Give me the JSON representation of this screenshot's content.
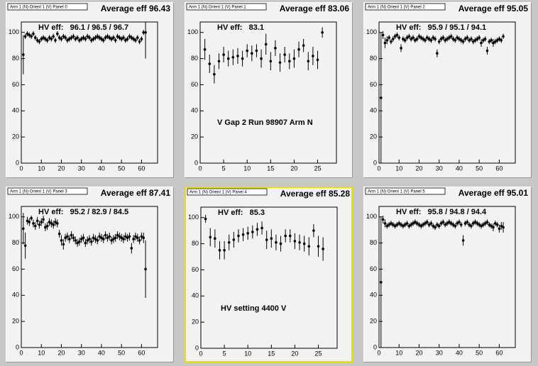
{
  "chart_data": [
    {
      "type": "scatter",
      "title": "Arm 1 (N) Orient 1 (V) Panel 0",
      "subtitle": "Average eff 96.43",
      "annotations": [
        "HV eff:   96.1 / 96.5 / 96.7"
      ],
      "xlim": [
        0,
        68
      ],
      "ylim": [
        0,
        108
      ],
      "xticks": [
        0,
        10,
        20,
        30,
        40,
        50,
        60
      ],
      "yticks": [
        0,
        20,
        40,
        60,
        80,
        100
      ],
      "series": [
        {
          "color": "#000000",
          "x": [
            1,
            2,
            3,
            4,
            5,
            6,
            7,
            8,
            9,
            10,
            11,
            12,
            13,
            14,
            15,
            16,
            17,
            18,
            19,
            20,
            21,
            22,
            23,
            24,
            25,
            26,
            27,
            28,
            29,
            30,
            31,
            32,
            33,
            34,
            35,
            36,
            37,
            38,
            39,
            40,
            41,
            42,
            43,
            44,
            45,
            46,
            47,
            48,
            49,
            50,
            51,
            52,
            53,
            54,
            55,
            56,
            57,
            58,
            59,
            60,
            61,
            62
          ],
          "values": [
            83,
            97,
            99,
            98,
            97,
            99,
            96,
            94,
            93,
            95,
            96,
            95,
            94,
            96,
            95,
            97,
            94,
            99,
            96,
            95,
            97,
            96,
            94,
            95,
            96,
            97,
            95,
            96,
            94,
            95,
            96,
            95,
            97,
            96,
            94,
            95,
            96,
            97,
            96,
            95,
            94,
            96,
            97,
            96,
            95,
            96,
            94,
            97,
            96,
            95,
            96,
            94,
            95,
            97,
            96,
            95,
            94,
            96,
            93,
            95,
            100,
            100
          ],
          "errors": [
            15,
            2,
            2,
            2,
            2,
            2,
            2,
            2,
            2,
            2,
            2,
            2,
            2,
            2,
            2,
            2,
            2,
            2,
            2,
            2,
            2,
            2,
            2,
            2,
            2,
            2,
            2,
            2,
            2,
            2,
            2,
            2,
            2,
            2,
            2,
            2,
            2,
            2,
            2,
            2,
            2,
            2,
            2,
            2,
            2,
            2,
            2,
            2,
            2,
            2,
            2,
            2,
            2,
            2,
            2,
            2,
            2,
            2,
            2,
            2,
            2,
            20
          ]
        }
      ]
    },
    {
      "type": "scatter",
      "title": "Arm 1 (N) Orient 1 (V) Panel 1",
      "subtitle": "Average eff 83.06",
      "annotations": [
        "HV eff:   83.1",
        "V Gap 2 Run 98907 Arm N"
      ],
      "xlim": [
        0,
        29
      ],
      "ylim": [
        0,
        108
      ],
      "xticks": [
        0,
        5,
        10,
        15,
        20,
        25
      ],
      "yticks": [
        0,
        20,
        40,
        60,
        80,
        100
      ],
      "series": [
        {
          "color": "#000000",
          "x": [
            1,
            2,
            3,
            4,
            5,
            6,
            7,
            8,
            9,
            10,
            11,
            12,
            13,
            14,
            15,
            16,
            17,
            18,
            19,
            20,
            21,
            22,
            23,
            24,
            25,
            26
          ],
          "values": [
            87,
            76,
            68,
            78,
            83,
            80,
            81,
            82,
            80,
            86,
            84,
            86,
            80,
            91,
            78,
            88,
            77,
            83,
            78,
            80,
            87,
            90,
            78,
            82,
            79,
            100
          ],
          "errors": [
            8,
            7,
            7,
            6,
            6,
            6,
            6,
            6,
            6,
            5,
            6,
            5,
            7,
            8,
            7,
            6,
            7,
            6,
            6,
            7,
            6,
            5,
            7,
            7,
            7,
            4
          ]
        }
      ]
    },
    {
      "type": "scatter",
      "title": "Arm 1 (N) Orient 1 (V) Panel 2",
      "subtitle": "Average eff 95.05",
      "annotations": [
        "HV eff:   95.9 / 95.1 / 94.1"
      ],
      "xlim": [
        0,
        68
      ],
      "ylim": [
        0,
        108
      ],
      "xticks": [
        0,
        10,
        20,
        30,
        40,
        50,
        60
      ],
      "yticks": [
        0,
        20,
        40,
        60,
        80,
        100
      ],
      "series": [
        {
          "color": "#000000",
          "x": [
            1,
            2,
            3,
            4,
            5,
            6,
            7,
            8,
            9,
            10,
            11,
            12,
            13,
            14,
            15,
            16,
            17,
            18,
            19,
            20,
            21,
            22,
            23,
            24,
            25,
            26,
            27,
            28,
            29,
            30,
            31,
            32,
            33,
            34,
            35,
            36,
            37,
            38,
            39,
            40,
            41,
            42,
            43,
            44,
            45,
            46,
            47,
            48,
            49,
            50,
            51,
            52,
            53,
            54,
            55,
            56,
            57,
            58,
            59,
            60,
            61,
            62
          ],
          "values": [
            50,
            98,
            92,
            94,
            96,
            93,
            95,
            97,
            98,
            96,
            88,
            95,
            94,
            96,
            97,
            95,
            96,
            94,
            95,
            97,
            96,
            95,
            94,
            96,
            95,
            94,
            96,
            95,
            84,
            93,
            95,
            96,
            94,
            95,
            96,
            97,
            95,
            94,
            96,
            95,
            94,
            93,
            95,
            96,
            94,
            95,
            93,
            94,
            95,
            96,
            92,
            94,
            95,
            86,
            93,
            94,
            92,
            93,
            94,
            95,
            94,
            97
          ],
          "errors": [
            50,
            3,
            4,
            3,
            2,
            2,
            2,
            2,
            2,
            2,
            3,
            2,
            2,
            2,
            2,
            2,
            2,
            2,
            2,
            2,
            2,
            2,
            2,
            2,
            2,
            2,
            2,
            2,
            3,
            2,
            2,
            2,
            2,
            2,
            2,
            2,
            2,
            2,
            2,
            2,
            2,
            2,
            2,
            2,
            2,
            2,
            2,
            2,
            2,
            2,
            3,
            2,
            2,
            3,
            2,
            2,
            3,
            2,
            2,
            2,
            2,
            2
          ]
        }
      ]
    },
    {
      "type": "scatter",
      "title": "Arm 1 (N) Orient 1 (V) Panel 3",
      "subtitle": "Average eff 87.41",
      "annotations": [
        "HV eff:   95.2 / 82.9 / 84.5"
      ],
      "xlim": [
        0,
        68
      ],
      "ylim": [
        0,
        108
      ],
      "xticks": [
        0,
        10,
        20,
        30,
        40,
        50,
        60
      ],
      "yticks": [
        0,
        20,
        40,
        60,
        80,
        100
      ],
      "series": [
        {
          "color": "#000000",
          "x": [
            1,
            2,
            3,
            4,
            5,
            6,
            7,
            8,
            9,
            10,
            11,
            12,
            13,
            14,
            15,
            16,
            17,
            18,
            19,
            20,
            21,
            22,
            23,
            24,
            25,
            26,
            27,
            28,
            29,
            30,
            31,
            32,
            33,
            34,
            35,
            36,
            37,
            38,
            39,
            40,
            41,
            42,
            43,
            44,
            45,
            46,
            47,
            48,
            49,
            50,
            51,
            52,
            53,
            54,
            55,
            56,
            57,
            58,
            59,
            60,
            61,
            62
          ],
          "values": [
            91,
            78,
            97,
            96,
            99,
            95,
            93,
            97,
            94,
            96,
            98,
            92,
            93,
            96,
            95,
            94,
            96,
            95,
            87,
            82,
            79,
            84,
            85,
            83,
            86,
            84,
            82,
            80,
            81,
            83,
            84,
            80,
            82,
            83,
            81,
            84,
            83,
            82,
            85,
            84,
            83,
            86,
            84,
            85,
            82,
            83,
            84,
            86,
            85,
            84,
            83,
            85,
            84,
            85,
            76,
            83,
            85,
            84,
            82,
            85,
            84,
            60
          ],
          "errors": [
            12,
            10,
            3,
            3,
            2,
            3,
            3,
            3,
            3,
            3,
            3,
            3,
            3,
            3,
            3,
            3,
            3,
            3,
            3,
            4,
            4,
            3,
            3,
            3,
            3,
            3,
            3,
            3,
            3,
            3,
            3,
            3,
            3,
            3,
            3,
            3,
            3,
            3,
            3,
            3,
            3,
            3,
            3,
            3,
            3,
            3,
            3,
            3,
            3,
            3,
            3,
            3,
            3,
            3,
            4,
            3,
            3,
            3,
            3,
            3,
            4,
            22
          ]
        }
      ]
    },
    {
      "type": "scatter",
      "title": "Arm 1 (N) Orient 1 (V) Panel 4",
      "subtitle": "Average eff 85.28",
      "annotations": [
        "HV eff:   85.3",
        "HV setting 4400 V"
      ],
      "xlim": [
        0,
        29
      ],
      "ylim": [
        0,
        108
      ],
      "xticks": [
        0,
        5,
        10,
        15,
        20,
        25
      ],
      "yticks": [
        0,
        20,
        40,
        60,
        80,
        100
      ],
      "series": [
        {
          "color": "#000000",
          "x": [
            1,
            2,
            3,
            4,
            5,
            6,
            7,
            8,
            9,
            10,
            11,
            12,
            13,
            14,
            15,
            16,
            17,
            18,
            19,
            20,
            21,
            22,
            23,
            24,
            25,
            26
          ],
          "values": [
            99,
            85,
            84,
            75,
            75,
            81,
            83,
            86,
            87,
            88,
            89,
            91,
            92,
            83,
            84,
            81,
            80,
            86,
            86,
            82,
            81,
            80,
            78,
            90,
            78,
            76
          ],
          "errors": [
            3,
            7,
            7,
            7,
            7,
            6,
            6,
            5,
            5,
            5,
            5,
            5,
            5,
            7,
            7,
            6,
            6,
            5,
            5,
            6,
            6,
            6,
            7,
            5,
            8,
            9
          ]
        }
      ]
    },
    {
      "type": "scatter",
      "title": "Arm 1 (N) Orient 1 (V) Panel 5",
      "subtitle": "Average eff 95.01",
      "annotations": [
        "HV eff:   95.8 / 94.8 / 94.4"
      ],
      "xlim": [
        0,
        68
      ],
      "ylim": [
        0,
        108
      ],
      "xticks": [
        0,
        10,
        20,
        30,
        40,
        50,
        60
      ],
      "yticks": [
        0,
        20,
        40,
        60,
        80,
        100
      ],
      "series": [
        {
          "color": "#000000",
          "x": [
            1,
            2,
            3,
            4,
            5,
            6,
            7,
            8,
            9,
            10,
            11,
            12,
            13,
            14,
            15,
            16,
            17,
            18,
            19,
            20,
            21,
            22,
            23,
            24,
            25,
            26,
            27,
            28,
            29,
            30,
            31,
            32,
            33,
            34,
            35,
            36,
            37,
            38,
            39,
            40,
            41,
            42,
            43,
            44,
            45,
            46,
            47,
            48,
            49,
            50,
            51,
            52,
            53,
            54,
            55,
            56,
            57,
            58,
            59,
            60,
            61,
            62
          ],
          "values": [
            50,
            98,
            95,
            93,
            94,
            95,
            94,
            93,
            94,
            95,
            94,
            93,
            94,
            95,
            93,
            94,
            95,
            96,
            95,
            94,
            93,
            94,
            95,
            96,
            94,
            95,
            93,
            92,
            94,
            93,
            95,
            96,
            94,
            95,
            96,
            95,
            94,
            93,
            95,
            96,
            94,
            82,
            95,
            96,
            94,
            93,
            95,
            96,
            95,
            94,
            93,
            94,
            95,
            96,
            94,
            93,
            92,
            95,
            94,
            91,
            93,
            92
          ],
          "errors": [
            50,
            3,
            3,
            2,
            2,
            2,
            2,
            2,
            2,
            2,
            2,
            2,
            2,
            2,
            2,
            2,
            2,
            2,
            2,
            2,
            2,
            2,
            2,
            2,
            2,
            2,
            2,
            2,
            2,
            2,
            2,
            2,
            2,
            2,
            2,
            2,
            2,
            2,
            2,
            2,
            2,
            4,
            2,
            2,
            2,
            2,
            2,
            2,
            2,
            2,
            2,
            2,
            2,
            2,
            2,
            2,
            3,
            2,
            2,
            3,
            3,
            4
          ]
        }
      ]
    }
  ]
}
